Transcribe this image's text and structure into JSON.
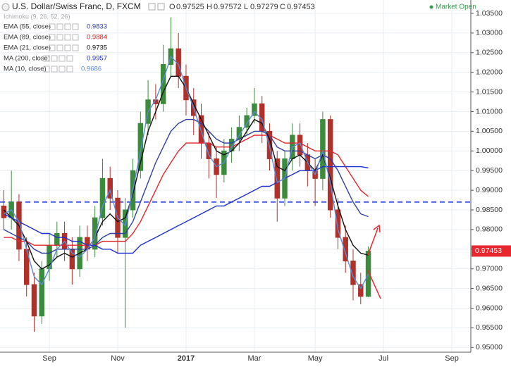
{
  "chart_data": {
    "type": "candlestick",
    "title": "U.S. Dollar/Swiss Franc, D, FXCM",
    "ohlc": [
      {
        "label": "O",
        "value": 0.97525
      },
      {
        "label": "H",
        "value": 0.97572
      },
      {
        "label": "L",
        "value": 0.97279
      },
      {
        "label": "C",
        "value": 0.97453
      }
    ],
    "status": "Market Open",
    "inactive_indicator": "Ichimoku (9, 26, 52, 26)",
    "categories": [
      null,
      null,
      null,
      null,
      null,
      null,
      "Sep",
      null,
      null,
      null,
      null,
      null,
      null,
      null,
      null,
      "Nov",
      null,
      null,
      null,
      null,
      null,
      null,
      null,
      null,
      "2017",
      null,
      null,
      null,
      null,
      null,
      null,
      null,
      null,
      "Mar",
      null,
      null,
      null,
      null,
      null,
      null,
      null,
      "May",
      null,
      null,
      null,
      null,
      null,
      null,
      null,
      null,
      "Jul",
      null,
      null,
      null,
      null,
      null,
      null,
      null,
      null,
      "Sep",
      null,
      null
    ],
    "open": [
      0.986,
      0.983,
      0.987,
      0.975,
      0.966,
      0.958,
      0.97,
      0.976,
      0.979,
      0.975,
      0.97,
      0.978,
      0.975,
      0.983,
      0.993,
      0.988,
      0.978,
      0.985,
      0.995,
      1.007,
      1.013,
      1.012,
      1.022,
      1.026,
      1.019,
      1.013,
      1.009,
      1.002,
      0.998,
      0.994,
      1.0,
      1.003,
      1.006,
      1.009,
      1.012,
      1.005,
      0.998,
      0.988,
      0.998,
      1.004,
      0.999,
      0.995,
      0.993,
      1.008,
      0.985,
      0.978,
      0.972,
      0.966,
      0.963,
      null,
      null,
      null,
      null,
      null,
      null,
      null,
      null,
      null,
      null,
      null,
      null,
      null
    ],
    "high": [
      0.99,
      0.995,
      0.989,
      0.978,
      0.969,
      0.972,
      0.979,
      0.982,
      0.982,
      0.978,
      0.981,
      0.981,
      0.986,
      0.998,
      0.996,
      0.99,
      0.988,
      0.998,
      1.01,
      1.018,
      1.017,
      1.027,
      1.034,
      1.03,
      1.022,
      1.016,
      1.012,
      1.005,
      1.001,
      1.003,
      1.006,
      1.009,
      1.011,
      1.016,
      1.014,
      1.007,
      1.0,
      1.0,
      1.007,
      1.007,
      1.002,
      0.998,
      1.01,
      1.009,
      0.988,
      0.981,
      0.975,
      0.969,
      0.9757,
      null,
      null,
      null,
      null,
      null,
      null,
      null,
      null,
      null,
      null,
      null,
      null,
      null
    ],
    "low": [
      0.98,
      0.98,
      0.972,
      0.963,
      0.954,
      0.956,
      0.967,
      0.973,
      0.972,
      0.966,
      0.968,
      0.972,
      0.973,
      0.981,
      0.985,
      0.974,
      0.955,
      0.983,
      0.993,
      1.004,
      1.008,
      1.01,
      1.019,
      1.016,
      1.009,
      1.004,
      0.998,
      0.993,
      0.988,
      0.992,
      0.997,
      1.0,
      1.004,
      1.007,
      1.002,
      0.995,
      0.982,
      0.986,
      0.995,
      0.996,
      0.991,
      0.986,
      0.99,
      0.983,
      0.975,
      0.969,
      0.962,
      0.961,
      0.9628,
      null,
      null,
      null,
      null,
      null,
      null,
      null,
      null,
      null,
      null,
      null,
      null,
      null
    ],
    "close": [
      0.983,
      0.987,
      0.975,
      0.966,
      0.958,
      0.97,
      0.976,
      0.979,
      0.975,
      0.97,
      0.978,
      0.975,
      0.983,
      0.993,
      0.988,
      0.978,
      0.985,
      0.995,
      1.007,
      1.013,
      1.012,
      1.022,
      1.026,
      1.019,
      1.013,
      1.009,
      1.002,
      0.998,
      0.994,
      1.0,
      1.003,
      1.006,
      1.009,
      1.012,
      1.005,
      0.998,
      0.988,
      0.998,
      1.004,
      0.999,
      0.995,
      0.993,
      1.008,
      0.985,
      0.978,
      0.972,
      0.966,
      0.963,
      0.9745,
      null,
      null,
      null,
      null,
      null,
      null,
      null,
      null,
      null,
      null,
      null,
      null,
      null
    ],
    "up_color": "#3c8a3c",
    "down_color": "#b0302a",
    "series": [
      {
        "name": "EMA (55, close)",
        "color": "#2f3f9f",
        "values": [
          0.98,
          0.979,
          0.978,
          0.977,
          0.975,
          0.974,
          0.974,
          0.975,
          0.975,
          0.975,
          0.975,
          0.975,
          0.976,
          0.978,
          0.979,
          0.979,
          0.979,
          0.982,
          0.987,
          0.992,
          0.997,
          1.001,
          1.005,
          1.007,
          1.008,
          1.008,
          1.007,
          1.005,
          1.003,
          1.002,
          1.002,
          1.003,
          1.004,
          1.005,
          1.005,
          1.004,
          1.001,
          1.0,
          1.0,
          1.0,
          0.999,
          0.998,
          0.999,
          0.998,
          0.995,
          0.991,
          0.987,
          0.984,
          0.9833,
          null,
          null,
          null,
          null,
          null,
          null,
          null,
          null,
          null,
          null,
          null,
          null,
          null
        ]
      },
      {
        "name": "EMA (89, close)",
        "color": "#e0262b",
        "values": [
          0.978,
          0.978,
          0.977,
          0.977,
          0.976,
          0.976,
          0.976,
          0.976,
          0.976,
          0.976,
          0.976,
          0.976,
          0.976,
          0.977,
          0.977,
          0.977,
          0.977,
          0.979,
          0.982,
          0.986,
          0.99,
          0.994,
          0.997,
          1.0,
          1.002,
          1.002,
          1.002,
          1.002,
          1.001,
          1.001,
          1.001,
          1.002,
          1.003,
          1.004,
          1.004,
          1.004,
          1.003,
          1.002,
          1.002,
          1.002,
          1.001,
          1.0,
          1.0,
          1.0,
          0.999,
          0.996,
          0.993,
          0.99,
          0.9884,
          null,
          null,
          null,
          null,
          null,
          null,
          null,
          null,
          null,
          null,
          null,
          null,
          null
        ]
      },
      {
        "name": "EMA (21, close)",
        "color": "#111111",
        "values": [
          0.985,
          0.983,
          0.981,
          0.977,
          0.972,
          0.97,
          0.971,
          0.973,
          0.974,
          0.973,
          0.974,
          0.975,
          0.978,
          0.982,
          0.984,
          0.982,
          0.983,
          0.989,
          0.997,
          1.005,
          1.01,
          1.015,
          1.019,
          1.019,
          1.016,
          1.012,
          1.008,
          1.004,
          1.0,
          0.999,
          1.0,
          1.002,
          1.005,
          1.008,
          1.007,
          1.003,
          0.996,
          0.995,
          0.998,
          0.999,
          0.997,
          0.995,
          0.999,
          0.993,
          0.986,
          0.98,
          0.976,
          0.974,
          0.9735,
          null,
          null,
          null,
          null,
          null,
          null,
          null,
          null,
          null,
          null,
          null,
          null,
          null
        ]
      },
      {
        "name": "MA (200, close)",
        "color": "#1d2fd4",
        "values": [
          0.984,
          0.983,
          0.982,
          0.981,
          0.98,
          0.979,
          0.979,
          0.978,
          0.978,
          0.977,
          0.977,
          0.976,
          0.976,
          0.975,
          0.975,
          0.974,
          0.974,
          0.974,
          0.976,
          0.977,
          0.978,
          0.979,
          0.98,
          0.981,
          0.982,
          0.983,
          0.984,
          0.985,
          0.986,
          0.986,
          0.987,
          0.988,
          0.989,
          0.99,
          0.991,
          0.991,
          0.992,
          0.993,
          0.994,
          0.995,
          0.995,
          0.995,
          0.996,
          0.996,
          0.996,
          0.996,
          0.996,
          0.996,
          0.9957,
          null,
          null,
          null,
          null,
          null,
          null,
          null,
          null,
          null,
          null,
          null,
          null,
          null
        ]
      },
      {
        "name": "MA (10, close)",
        "color": "#5b8ad6",
        "values": [
          0.984,
          0.985,
          0.982,
          0.975,
          0.968,
          0.966,
          0.97,
          0.975,
          0.977,
          0.974,
          0.973,
          0.975,
          0.978,
          0.986,
          0.99,
          0.983,
          0.981,
          0.99,
          1.0,
          1.01,
          1.013,
          1.018,
          1.024,
          1.022,
          1.016,
          1.011,
          1.005,
          0.999,
          0.996,
          0.997,
          1.001,
          1.004,
          1.007,
          1.01,
          1.008,
          1.001,
          0.992,
          0.993,
          1.001,
          1.002,
          0.997,
          0.994,
          1.0,
          0.992,
          0.98,
          0.974,
          0.968,
          0.965,
          0.9686,
          null,
          null,
          null,
          null,
          null,
          null,
          null,
          null,
          null,
          null,
          null,
          null,
          null
        ]
      }
    ],
    "hline": {
      "value": 0.987,
      "color": "#1a2fe0"
    },
    "price_tag_color": "#e8262d",
    "ylim": [
      0.9488,
      1.0384
    ],
    "yticks": [
      {
        "value": 1.035,
        "label": "1.03500"
      },
      {
        "value": 1.03,
        "label": "1.03000"
      },
      {
        "value": 1.025,
        "label": "1.02500"
      },
      {
        "value": 1.02,
        "label": "1.02000"
      },
      {
        "value": 1.015,
        "label": "1.01500"
      },
      {
        "value": 1.01,
        "label": "1.01000"
      },
      {
        "value": 1.005,
        "label": "1.00500"
      },
      {
        "value": 1.0,
        "label": "1.00000"
      },
      {
        "value": 0.995,
        "label": "0.99500"
      },
      {
        "value": 0.99,
        "label": "0.99000"
      },
      {
        "value": 0.985,
        "label": "0.98500"
      },
      {
        "value": 0.98,
        "label": "0.98000"
      },
      {
        "value": 0.975,
        "label": "0.97500"
      },
      {
        "value": 0.97,
        "label": "0.97000"
      },
      {
        "value": 0.965,
        "label": "0.96500"
      },
      {
        "value": 0.96,
        "label": "0.96000"
      },
      {
        "value": 0.955,
        "label": "0.95500"
      },
      {
        "value": 0.95,
        "label": "0.95000"
      }
    ],
    "grid": true
  }
}
